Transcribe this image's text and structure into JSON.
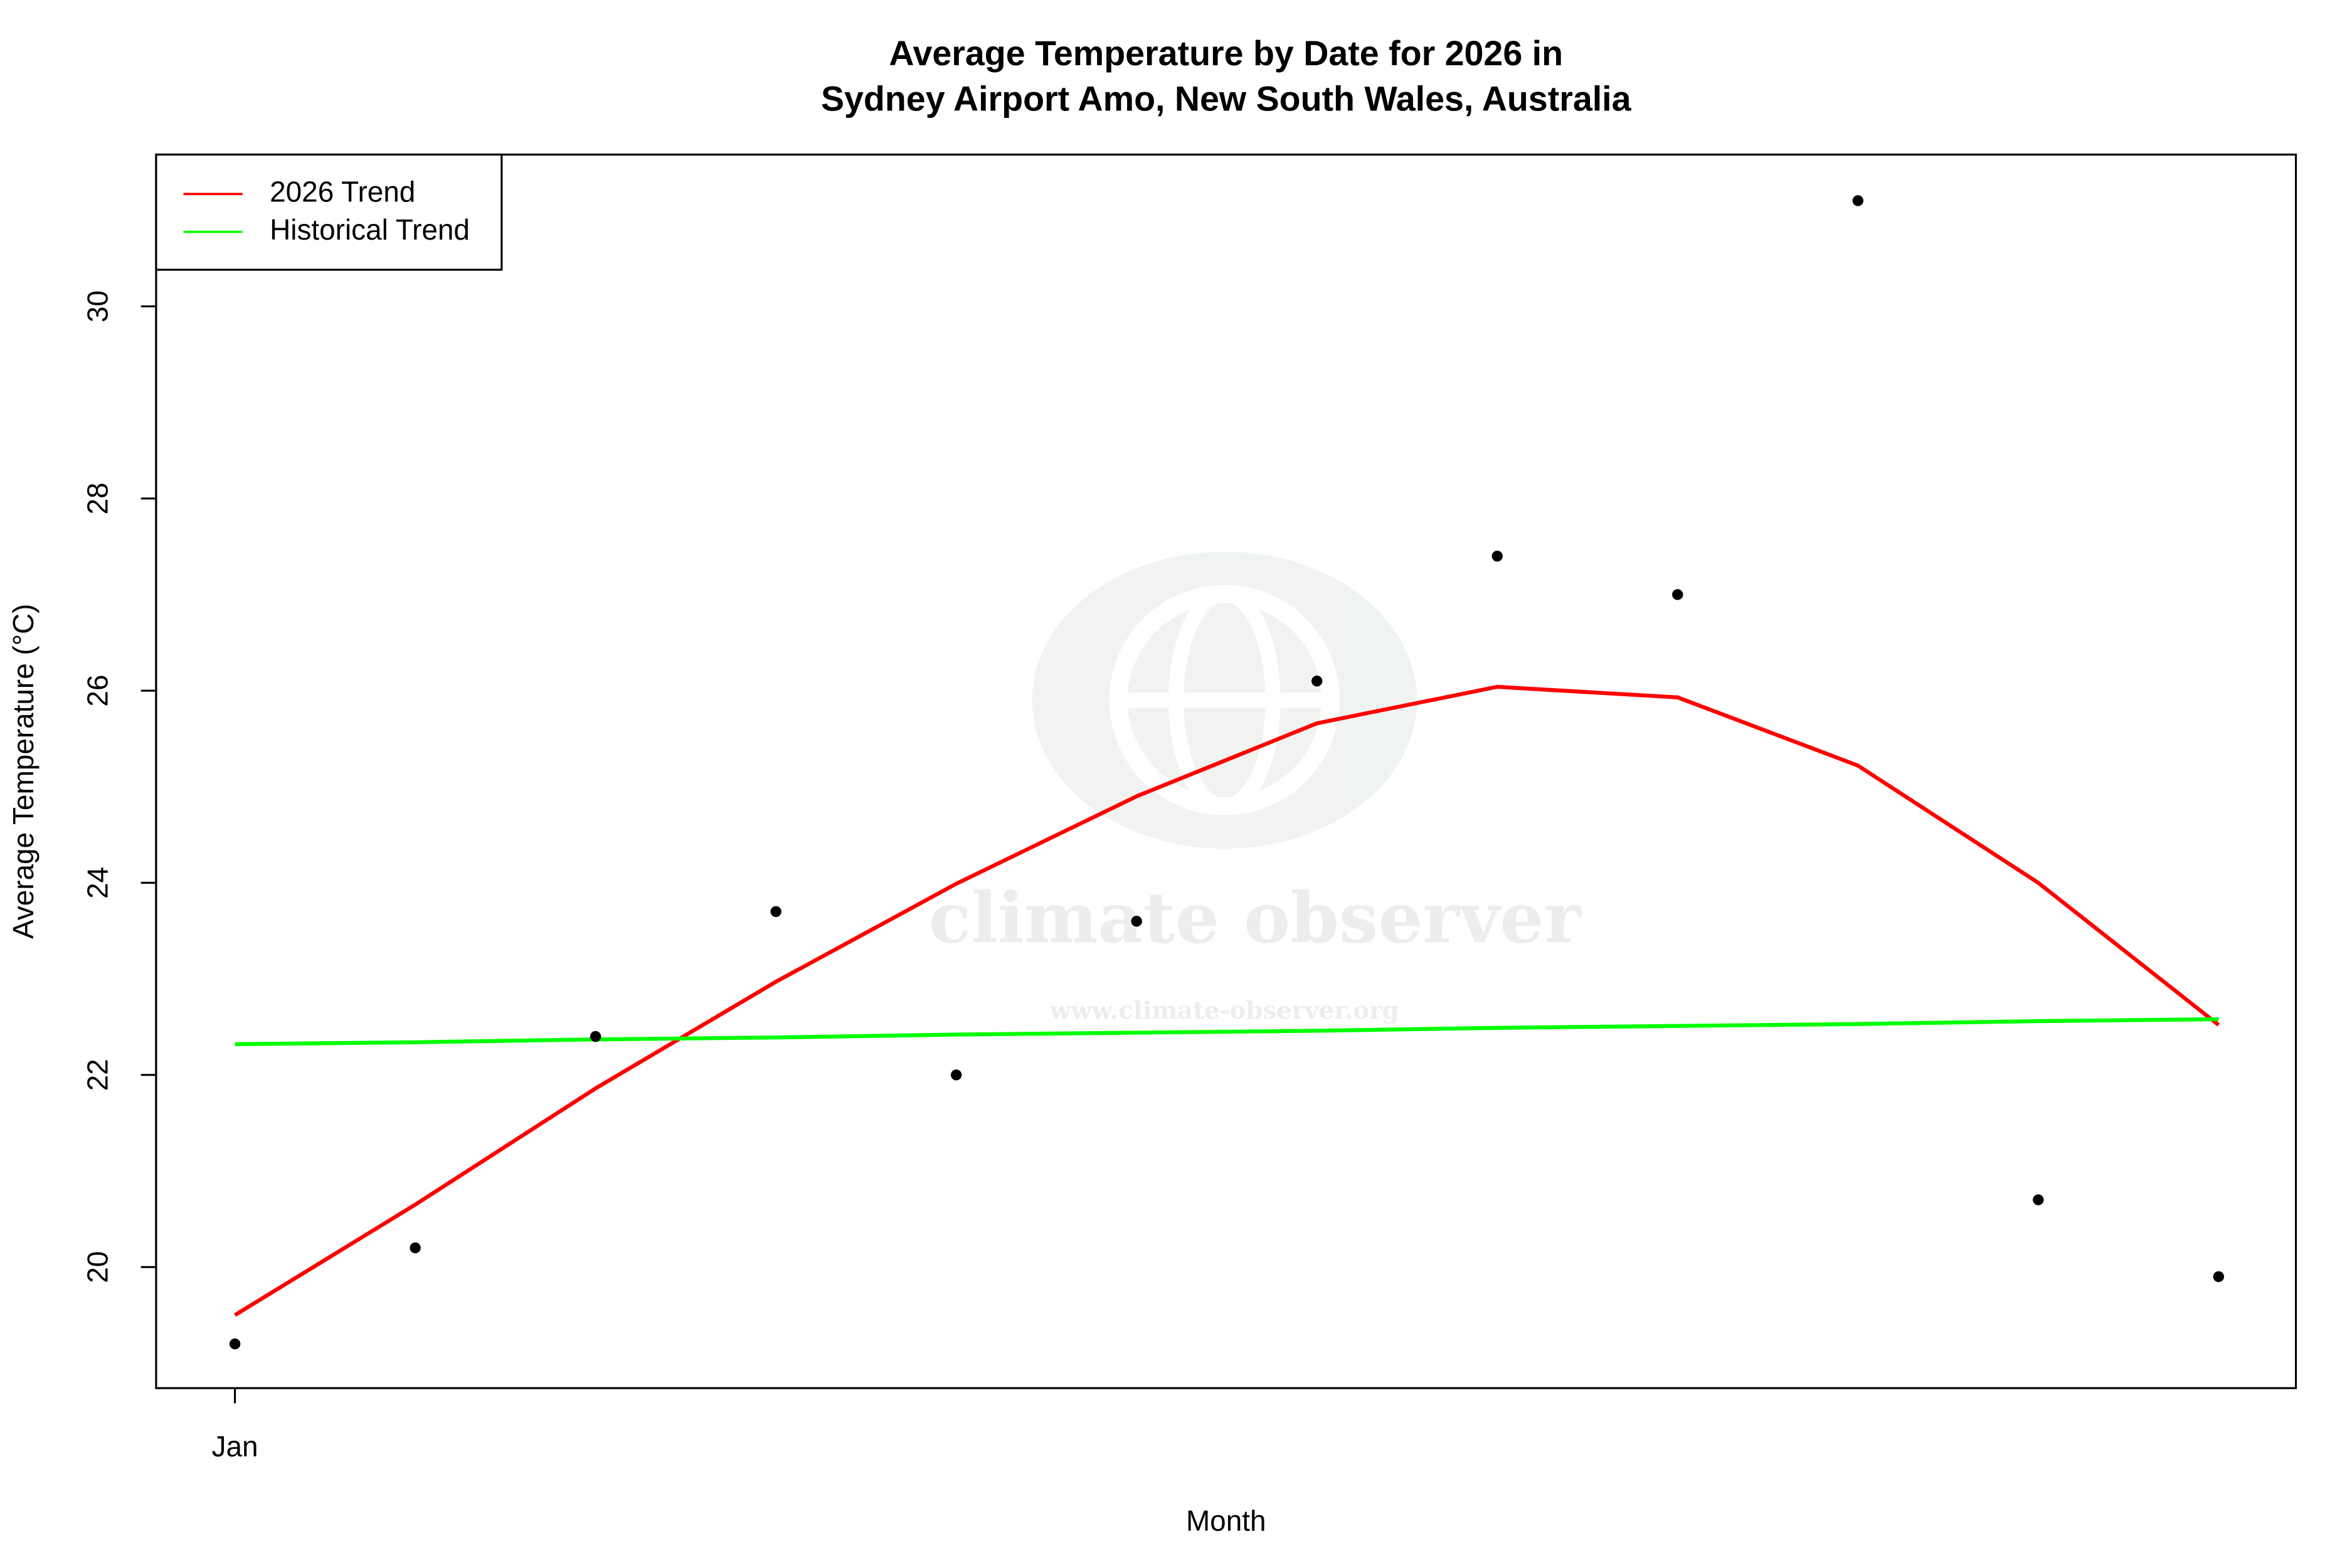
{
  "chart_data": {
    "type": "scatter",
    "title": "Average Temperature by Date for 2026 in",
    "subtitle": "Sydney Airport Amo, New South Wales, Australia",
    "x_label": "Month",
    "y_label": "Average Temperature (°C)",
    "watermark": "climate observer",
    "watermark_url": "www.climate-observer.org",
    "categories": [
      "Jan",
      null,
      null,
      null,
      null,
      null,
      null,
      null,
      null,
      null,
      null,
      null
    ],
    "values": [
      19.2,
      20.2,
      22.4,
      23.7,
      22.0,
      23.6,
      26.1,
      27.4,
      27.0,
      31.1,
      20.7,
      19.9
    ],
    "color": "#000000",
    "series": [
      {
        "name": "2026 Trend",
        "color": "#ff0000",
        "values": [
          19.5,
          20.65,
          21.86,
          22.97,
          23.99,
          24.9,
          25.66,
          26.04,
          25.93,
          25.22,
          24.0,
          22.52
        ]
      },
      {
        "name": "Historical Trend",
        "color": "#00ff00",
        "values": [
          22.32,
          22.34,
          22.37,
          22.39,
          22.42,
          22.44,
          22.46,
          22.49,
          22.51,
          22.53,
          22.56,
          22.58
        ]
      }
    ],
    "ylim": [
      18.74,
      31.58
    ],
    "yticks": [
      20,
      22,
      24,
      26,
      28,
      30
    ],
    "legend": "top-left"
  }
}
